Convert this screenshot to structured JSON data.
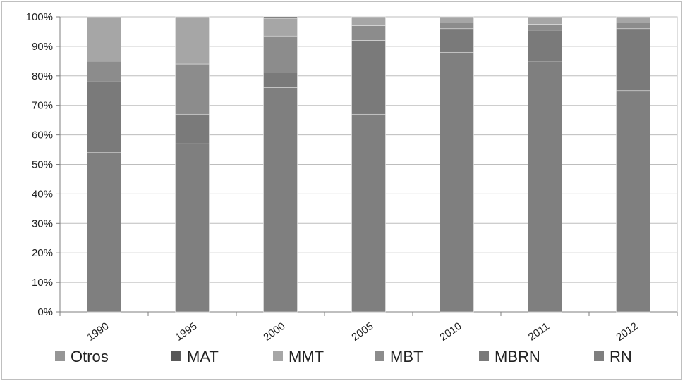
{
  "chart_data": {
    "type": "bar",
    "stacked": true,
    "title": "",
    "xlabel": "",
    "ylabel": "",
    "ylim": [
      0,
      100
    ],
    "y_ticks": [
      "0%",
      "10%",
      "20%",
      "30%",
      "40%",
      "50%",
      "60%",
      "70%",
      "80%",
      "90%",
      "100%"
    ],
    "grid": true,
    "legend_position": "bottom",
    "categories": [
      "1990",
      "1995",
      "2000",
      "2005",
      "2010",
      "2011",
      "2012"
    ],
    "series": [
      {
        "name": "RN",
        "color": "#7f7f7f",
        "values": [
          54,
          57,
          76,
          67,
          88,
          85,
          75
        ]
      },
      {
        "name": "MBRN",
        "color": "#7a7a7a",
        "values": [
          24,
          10,
          5,
          25,
          8,
          10.5,
          21
        ]
      },
      {
        "name": "MBT",
        "color": "#8c8c8c",
        "values": [
          7,
          17,
          12.5,
          5,
          2,
          2,
          2
        ]
      },
      {
        "name": "MMT",
        "color": "#a6a6a6",
        "values": [
          15,
          16,
          6,
          3,
          2,
          2.5,
          2
        ]
      },
      {
        "name": "MAT",
        "color": "#595959",
        "values": [
          0,
          0,
          0.5,
          0,
          0,
          0,
          0
        ]
      },
      {
        "name": "Otros",
        "color": "#969696",
        "values": [
          0,
          0,
          0,
          0,
          0,
          0,
          0
        ]
      }
    ],
    "legend_order": [
      "Otros",
      "MAT",
      "MMT",
      "MBT",
      "MBRN",
      "RN"
    ]
  }
}
